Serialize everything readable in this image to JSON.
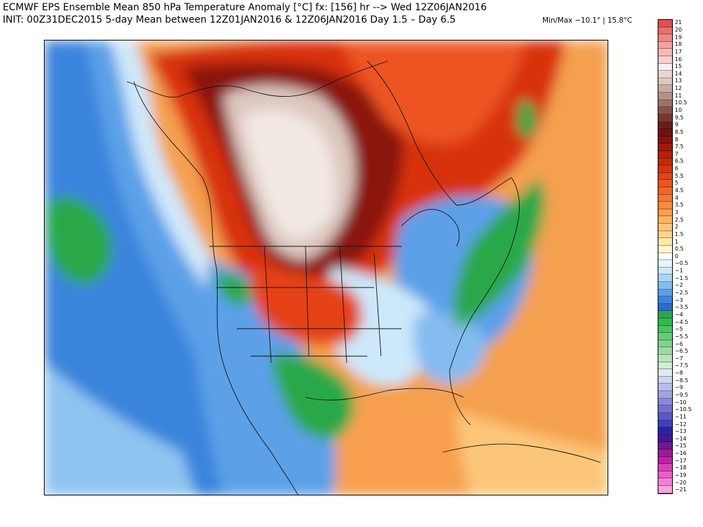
{
  "header": {
    "line1": "ECMWF EPS Ensemble Mean 850 hPa Temperature Anomaly [°C] fx: [156] hr --> Wed 12Z06JAN2016",
    "line2": "INIT: 00Z31DEC2015 5-day Mean between 12Z01JAN2016 & 12Z06JAN2016   Day 1.5 – Day 6.5",
    "minmax": "Min/Max −10.1° | 15.8°C"
  },
  "colorbar": {
    "labels": [
      "21",
      "20",
      "19",
      "18",
      "17",
      "16",
      "15",
      "14",
      "13",
      "12",
      "11",
      "10.5",
      "10",
      "9.5",
      "9",
      "8.5",
      "8",
      "7.5",
      "7",
      "6.5",
      "6",
      "5.5",
      "5",
      "4.5",
      "4",
      "3.5",
      "3",
      "2.5",
      "2",
      "1.5",
      "1",
      "0.5",
      "0",
      "−0.5",
      "−1",
      "−1.5",
      "−2",
      "−2.5",
      "−3",
      "−3.5",
      "−4",
      "−4.5",
      "−5",
      "−5.5",
      "−6",
      "−6.5",
      "−7",
      "−7.5",
      "−8",
      "−8.5",
      "−9",
      "−9.5",
      "−10",
      "−10.5",
      "−11",
      "−12",
      "−13",
      "−14",
      "−15",
      "−16",
      "−17",
      "−18",
      "−19",
      "−20",
      "−21"
    ],
    "colors": [
      "#e05050",
      "#e87070",
      "#f08888",
      "#f4a0a0",
      "#f6b8b8",
      "#f8d0d0",
      "#faf0ee",
      "#e8d8d4",
      "#dcc8c0",
      "#c8aca4",
      "#b49088",
      "#a07068",
      "#8c5048",
      "#783830",
      "#642018",
      "#741010",
      "#8a1208",
      "#a01808",
      "#b81e08",
      "#c82808",
      "#d83210",
      "#e44218",
      "#ec5420",
      "#f06628",
      "#f47a30",
      "#f68c3c",
      "#f8a050",
      "#fab460",
      "#fcc678",
      "#fdd890",
      "#feeaa8",
      "#fff6cc",
      "#ffffff",
      "#e6f4fc",
      "#cce8fa",
      "#a8d4f6",
      "#84bcf0",
      "#5ca0e8",
      "#3a84dc",
      "#2a6cd0",
      "#2aa848",
      "#30b850",
      "#48c460",
      "#64cc74",
      "#80d48c",
      "#9cdca4",
      "#b8e4bc",
      "#d0ecd4",
      "#e0e8f4",
      "#d0d4f0",
      "#b8bcec",
      "#a0a4e4",
      "#8888dc",
      "#7070d4",
      "#5858c8",
      "#4040b8",
      "#3020a8",
      "#401898",
      "#701890",
      "#a01898",
      "#c020a8",
      "#d840b8",
      "#e860c8",
      "#f080d4",
      "#f8a0e0"
    ]
  }
}
